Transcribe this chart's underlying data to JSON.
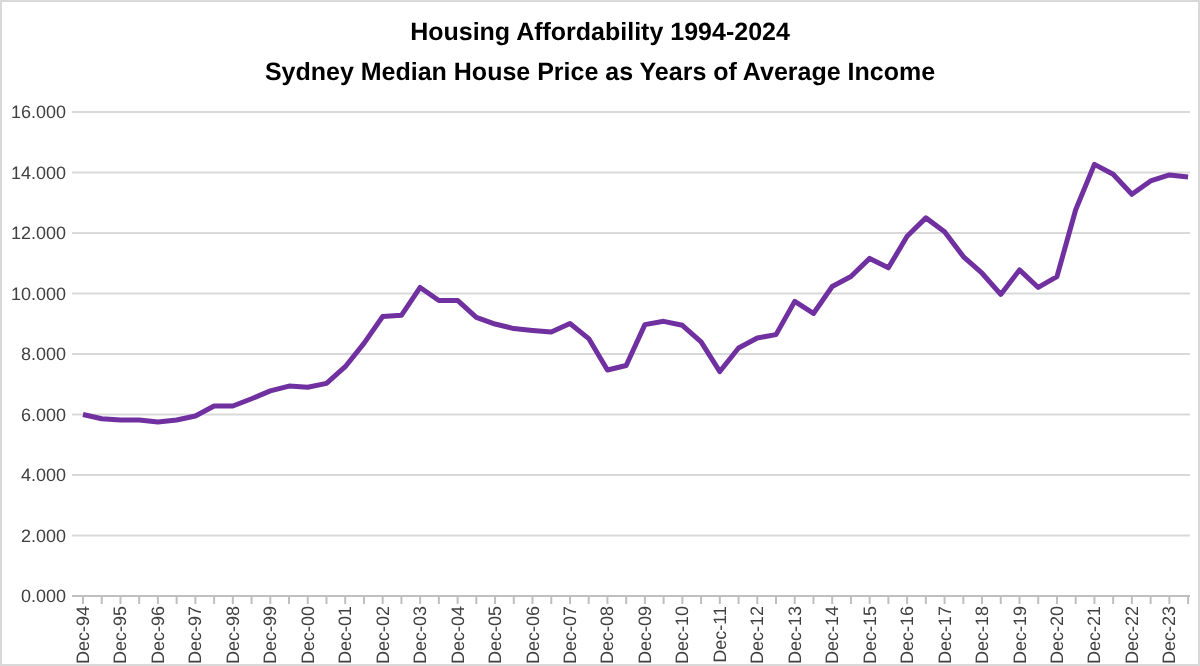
{
  "chart_data": {
    "type": "line",
    "title": "Housing Affordability 1994-2024",
    "subtitle": "Sydney Median House Price as Years of Average Income",
    "categories": [
      "Dec-94",
      null,
      "Dec-95",
      null,
      "Dec-96",
      null,
      "Dec-97",
      null,
      "Dec-98",
      null,
      "Dec-99",
      null,
      "Dec-00",
      null,
      "Dec-01",
      null,
      "Dec-02",
      null,
      "Dec-03",
      null,
      "Dec-04",
      null,
      "Dec-05",
      null,
      "Dec-06",
      null,
      "Dec-07",
      null,
      "Dec-08",
      null,
      "Dec-09",
      null,
      "Dec-10",
      null,
      "Dec-11",
      null,
      "Dec-12",
      null,
      "Dec-13",
      null,
      "Dec-14",
      null,
      "Dec-15",
      null,
      "Dec-16",
      null,
      "Dec-17",
      null,
      "Dec-18",
      null,
      "Dec-19",
      null,
      "Dec-20",
      null,
      "Dec-21",
      null,
      "Dec-22",
      null,
      "Dec-23",
      null
    ],
    "series": [
      {
        "color": "#7030a0",
        "values": [
          6.0,
          5.86,
          5.82,
          5.82,
          5.75,
          5.82,
          5.95,
          6.28,
          6.28,
          6.52,
          6.78,
          6.94,
          6.9,
          7.03,
          7.58,
          8.35,
          9.24,
          9.28,
          10.2,
          9.77,
          9.77,
          9.21,
          8.99,
          8.84,
          8.78,
          8.73,
          9.01,
          8.51,
          7.47,
          7.62,
          8.97,
          9.08,
          8.95,
          8.4,
          7.42,
          8.2,
          8.53,
          8.64,
          9.74,
          9.34,
          10.23,
          10.56,
          11.16,
          10.85,
          11.89,
          12.5,
          12.04,
          11.22,
          10.67,
          9.97,
          10.78,
          10.2,
          10.56,
          12.77,
          14.27,
          13.94,
          13.28,
          13.72,
          13.92,
          13.85
        ]
      }
    ],
    "ylim": [
      0,
      16
    ],
    "yticks": [
      {
        "value": 0,
        "label": "0.000"
      },
      {
        "value": 2,
        "label": "2.000"
      },
      {
        "value": 4,
        "label": "4.000"
      },
      {
        "value": 6,
        "label": "6.000"
      },
      {
        "value": 8,
        "label": "8.000"
      },
      {
        "value": 10,
        "label": "10.000"
      },
      {
        "value": 12,
        "label": "12.000"
      },
      {
        "value": 14,
        "label": "14.000"
      },
      {
        "value": 16,
        "label": "16.000"
      }
    ],
    "grid": "y",
    "marker": "none",
    "line_style": "solid"
  }
}
